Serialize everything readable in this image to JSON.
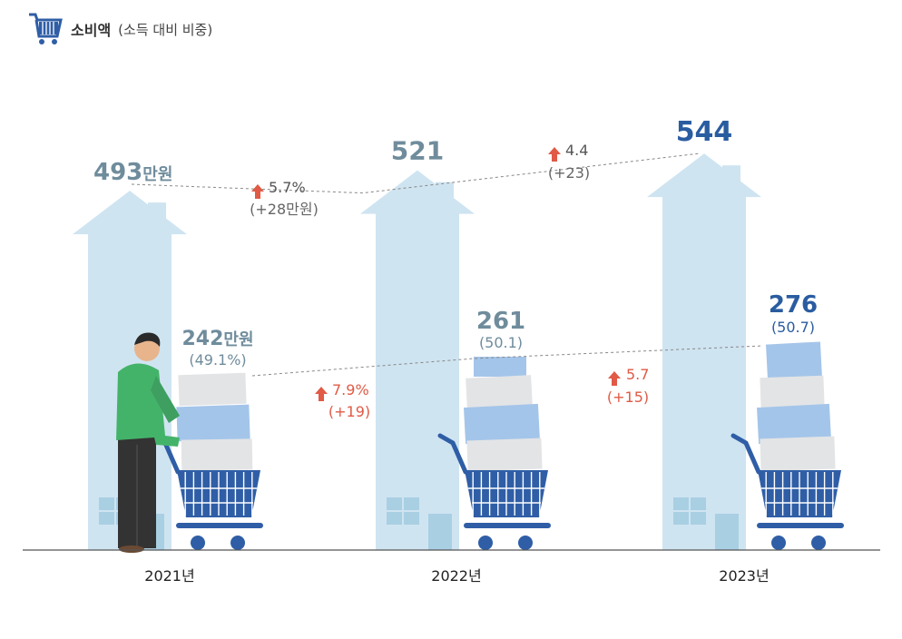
{
  "colors": {
    "house": "#cfe4f1",
    "window": "#a9cfe3",
    "total_label": "#6f8c9c",
    "total_label_2023": "#2a5ca0",
    "change_red": "#e05a46",
    "change_gray": "#666666",
    "cart": "#2f5ea6",
    "box_gray": "#e3e4e6",
    "box_blue": "#a4c5ea",
    "baseline": "#555555"
  },
  "title": {
    "main": "소비액",
    "sub": "(소득 대비 비중)",
    "icon": "shopping-cart-icon"
  },
  "chart_data": {
    "type": "bar",
    "title": "소비액(소득 대비 비중)",
    "categories": [
      "2021년",
      "2022년",
      "2023년"
    ],
    "series": [
      {
        "name": "소득",
        "values": [
          493,
          521,
          544
        ],
        "labels": [
          "493",
          "521",
          "544"
        ],
        "unit": "만원"
      },
      {
        "name": "소비액",
        "values": [
          242,
          261,
          276
        ],
        "labels": [
          "242",
          "261",
          "276"
        ],
        "unit": "만원",
        "share": [
          "(49.1%)",
          "(50.1)",
          "(50.7)"
        ]
      }
    ],
    "changes_total": [
      {
        "pct": "5.7%",
        "abs": "(+28만원)"
      },
      {
        "pct": "4.4",
        "abs": "(+23)"
      }
    ],
    "changes_consumption": [
      {
        "pct": "7.9%",
        "abs": "(+19)"
      },
      {
        "pct": "5.7",
        "abs": "(+15)"
      }
    ],
    "xlabel": "",
    "ylabel": ""
  }
}
